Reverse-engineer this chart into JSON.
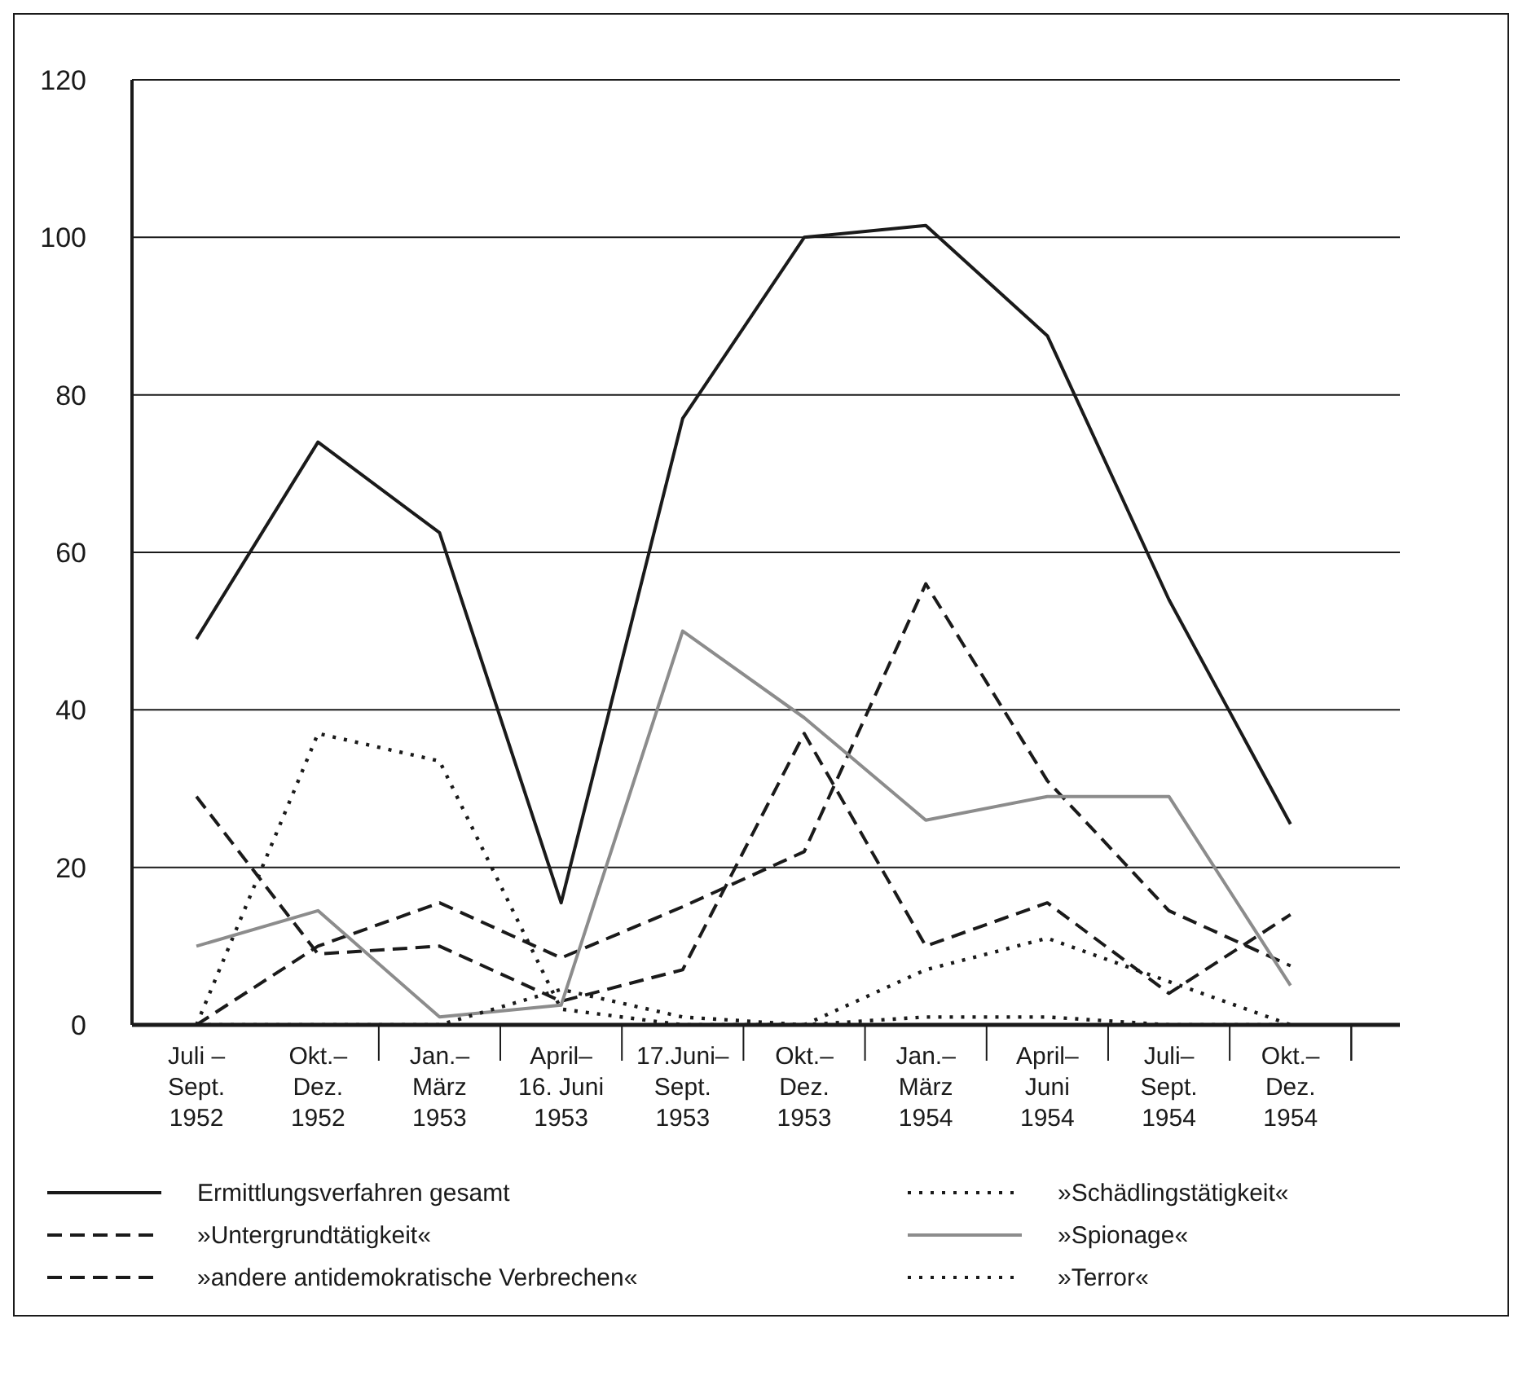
{
  "chart_data": {
    "type": "line",
    "categories": [
      "Juli –\nSept.\n1952",
      "Okt.–\nDez.\n1952",
      "Jan.–\nMärz\n1953",
      "April–\n16. Juni\n1953",
      "17.Juni–\nSept.\n1953",
      "Okt.–\nDez.\n1953",
      "Jan.–\nMärz\n1954",
      "April–\nJuni\n1954",
      "Juli–\nSept.\n1954",
      "Okt.–\nDez.\n1954"
    ],
    "series": [
      {
        "name": "Ermittlungsverfahren gesamt",
        "color": "#1a1a1a",
        "line_style": "solid",
        "values": [
          49,
          74,
          62.5,
          15.5,
          77,
          100,
          101.5,
          87.5,
          54,
          25.5
        ]
      },
      {
        "name": "»Untergrundtätigkeit«",
        "color": "#1a1a1a",
        "line_style": "dashed",
        "values": [
          29,
          9,
          10,
          3,
          7,
          37,
          10,
          15.5,
          4,
          14
        ]
      },
      {
        "name": "»andere antidemokratische Verbrechen«",
        "color": "#1a1a1a",
        "line_style": "dashed",
        "values": [
          0,
          10,
          15.5,
          8.5,
          15,
          22,
          56,
          31,
          14.5,
          7.5
        ]
      },
      {
        "name": "»Schädlingstätigkeit«",
        "color": "#1a1a1a",
        "line_style": "dotted",
        "values": [
          0,
          37,
          33.5,
          2,
          0,
          0,
          1,
          1,
          0,
          0
        ]
      },
      {
        "name": "»Spionage«",
        "color": "#8c8c8c",
        "line_style": "solid",
        "values": [
          10,
          14.5,
          1,
          2.5,
          50,
          39,
          26,
          29,
          29,
          5
        ]
      },
      {
        "name": "»Terror«",
        "color": "#1a1a1a",
        "line_style": "dotted",
        "values": [
          0,
          0,
          0,
          4.5,
          1,
          0,
          7,
          11,
          5.5,
          0
        ]
      }
    ],
    "ylim": [
      0,
      120
    ],
    "yticks": [
      0,
      20,
      40,
      60,
      80,
      100,
      120
    ],
    "grid": "y",
    "legend": "bottom",
    "marker": "none"
  }
}
